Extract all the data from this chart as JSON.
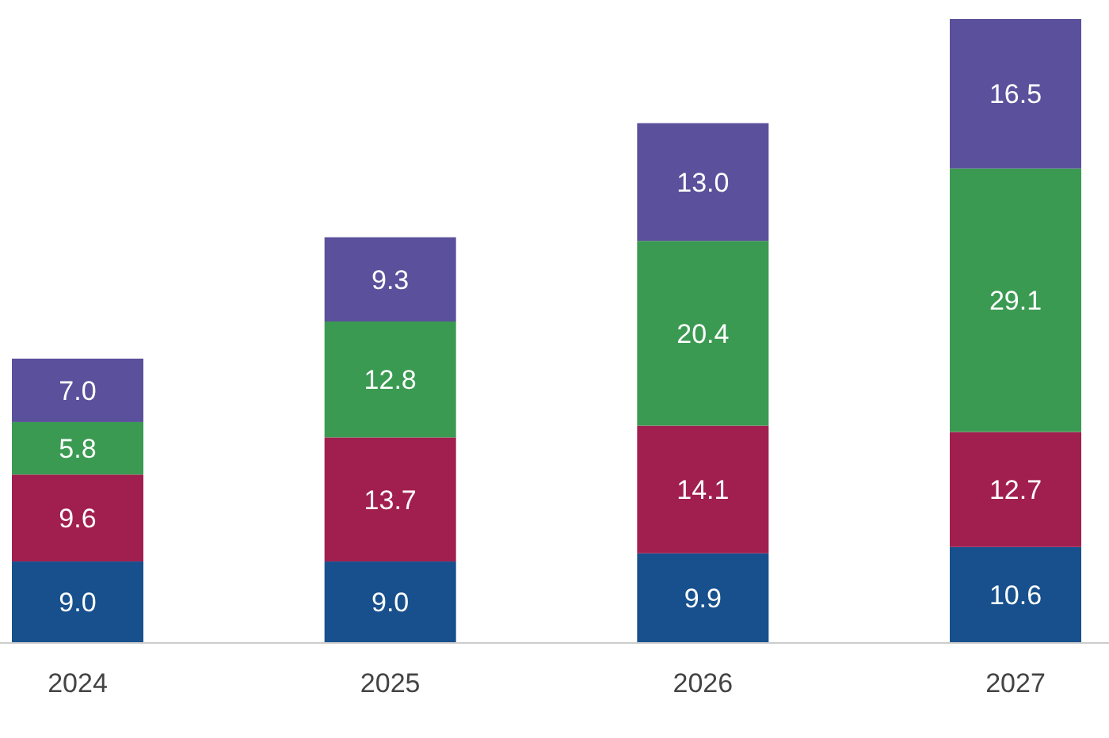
{
  "chart_data": {
    "type": "bar",
    "stacked": true,
    "categories": [
      "2024",
      "2025",
      "2026",
      "2027"
    ],
    "series": [
      {
        "color": "#17508c",
        "values": [
          9.0,
          9.0,
          9.9,
          10.6
        ],
        "value_labels": [
          "9.0",
          "9.0",
          "9.9",
          "10.6"
        ]
      },
      {
        "color": "#a11f4f",
        "values": [
          9.6,
          13.7,
          14.1,
          12.7
        ],
        "value_labels": [
          "9.6",
          "13.7",
          "14.1",
          "12.7"
        ]
      },
      {
        "color": "#3b9a52",
        "values": [
          5.8,
          12.8,
          20.4,
          29.1
        ],
        "value_labels": [
          "5.8",
          "12.8",
          "20.4",
          "29.1"
        ]
      },
      {
        "color": "#5a509b",
        "values": [
          7.0,
          9.3,
          13.0,
          16.5
        ],
        "value_labels": [
          "7.0",
          "9.3",
          "13.0",
          "16.5"
        ]
      }
    ]
  }
}
